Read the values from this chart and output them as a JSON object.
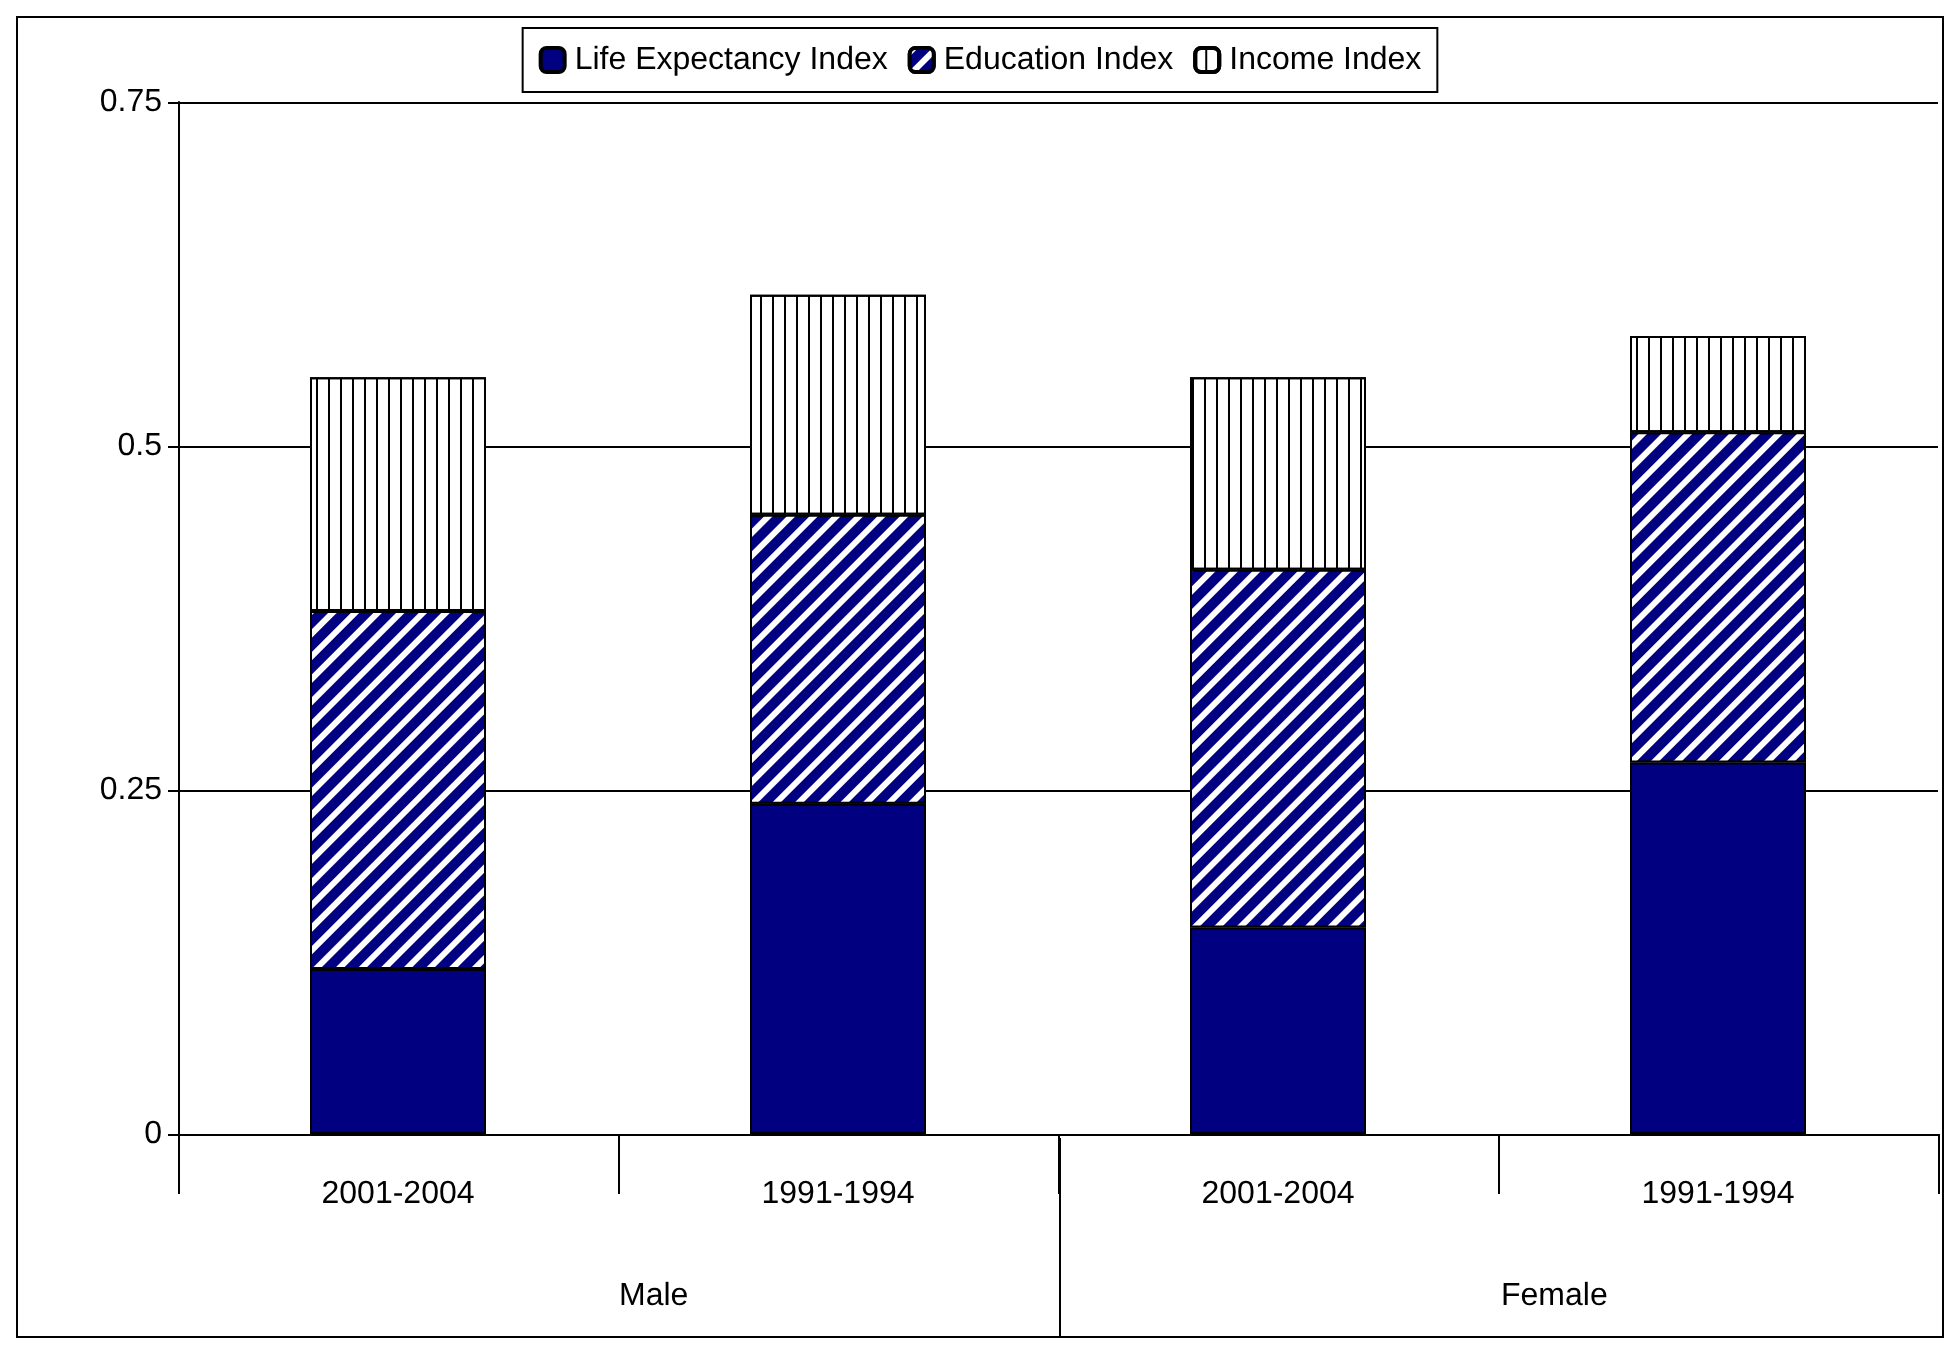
{
  "chart_data": {
    "type": "bar",
    "stacked": true,
    "categories": [
      "2001-2004",
      "1991-1994",
      "2001-2004",
      "1991-1994"
    ],
    "annotations": [
      "Male",
      "Female"
    ],
    "series": [
      {
        "name": "Life Expectancy Index",
        "color": "#000080",
        "values": [
          0.12,
          0.24,
          0.15,
          0.27
        ]
      },
      {
        "name": "Education Index",
        "color": "#000080",
        "values": [
          0.26,
          0.21,
          0.26,
          0.24
        ]
      },
      {
        "name": "Income Index",
        "color": "#ffffff",
        "values": [
          0.17,
          0.16,
          0.14,
          0.07
        ]
      }
    ],
    "ylim": [
      0,
      0.75
    ],
    "yticks": [
      0,
      0.25,
      0.5,
      0.75
    ],
    "grid": "y",
    "legend": "top"
  }
}
